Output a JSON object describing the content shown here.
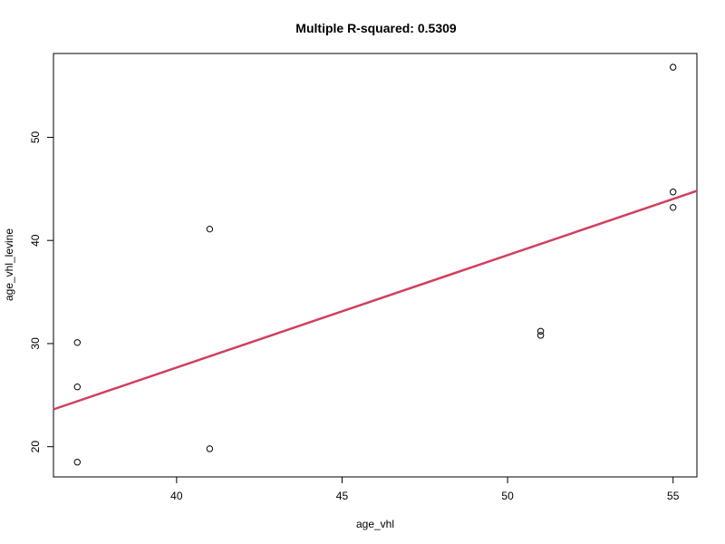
{
  "chart_data": {
    "type": "scatter",
    "title": "Multiple R-squared:  0.5309",
    "xlabel": "age_vhl",
    "ylabel": "age_vhl_levine",
    "xlim": [
      36.28,
      55.72
    ],
    "ylim": [
      17.07,
      58.13
    ],
    "xticks": [
      40,
      45,
      50,
      55
    ],
    "yticks": [
      20,
      30,
      40,
      50
    ],
    "grid": false,
    "points": [
      {
        "x": 37,
        "y": 30.1
      },
      {
        "x": 37,
        "y": 25.8
      },
      {
        "x": 37,
        "y": 18.5
      },
      {
        "x": 41,
        "y": 41.1
      },
      {
        "x": 41,
        "y": 19.8
      },
      {
        "x": 51,
        "y": 31.2
      },
      {
        "x": 51,
        "y": 30.8
      },
      {
        "x": 55,
        "y": 56.8
      },
      {
        "x": 55,
        "y": 44.7
      },
      {
        "x": 55,
        "y": 43.2
      }
    ],
    "fit_line": {
      "color": "#d0405e",
      "p1": {
        "x": 36.28,
        "y": 23.62
      },
      "p2": {
        "x": 55.72,
        "y": 44.81
      }
    },
    "point_color": "#000000"
  }
}
